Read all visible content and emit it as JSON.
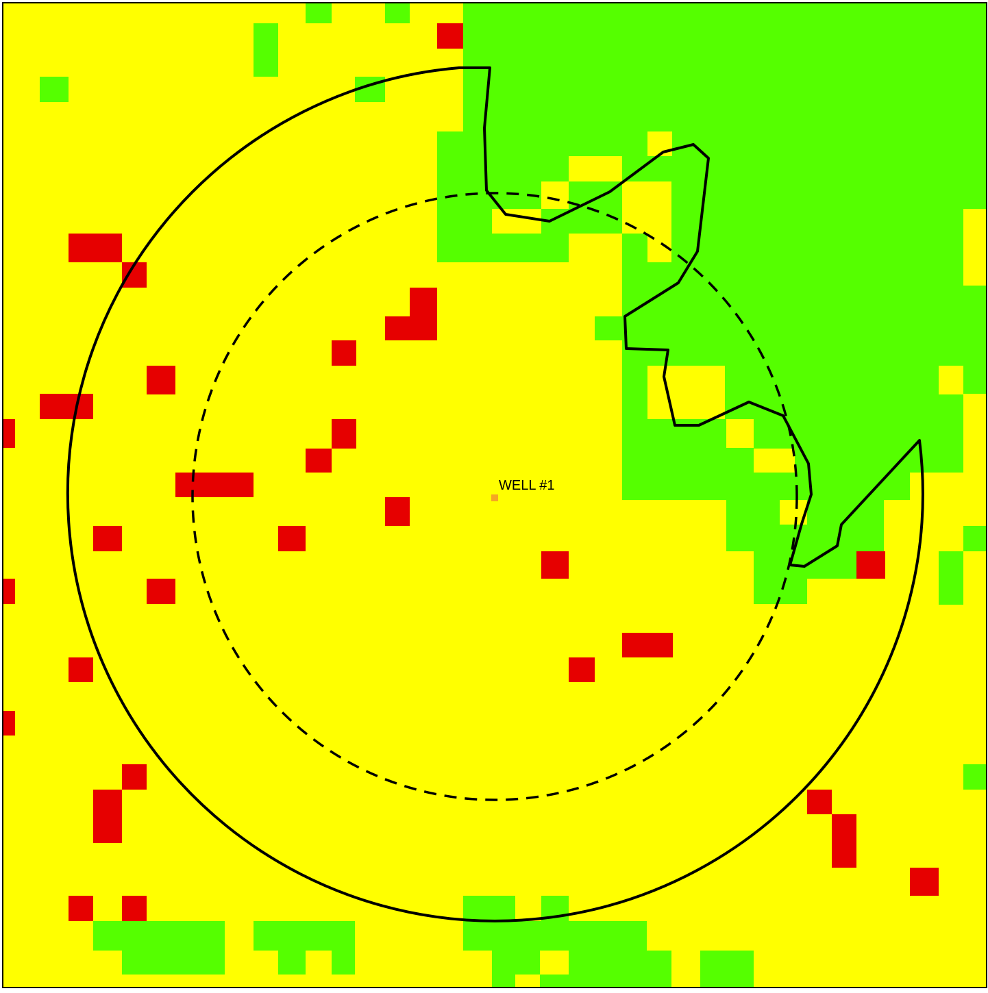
{
  "map": {
    "well": {
      "label": "WELL #1",
      "marker_color": "#f5a623"
    },
    "colors": {
      "background": "#ffff00",
      "green_zone": "#55ff00",
      "red_cell": "#e60000",
      "outline": "#000000",
      "frame": "#000000"
    },
    "legend": null
  }
}
